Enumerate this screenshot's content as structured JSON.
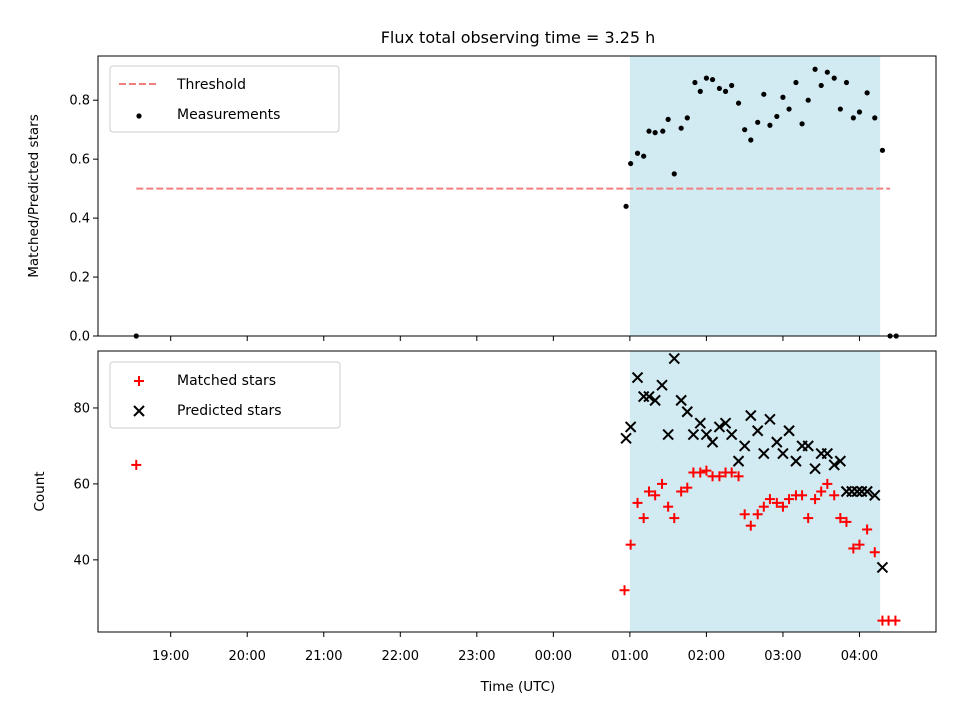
{
  "title": "Flux total observing time = 3.25 h",
  "colors": {
    "threshold": "#f08080",
    "measurement": "#000000",
    "matched": "#ff0000",
    "predicted": "#000000",
    "span": "#add8e6"
  },
  "chart_data": [
    {
      "type": "scatter",
      "ylabel": "Matched/Predicted stars",
      "ylim": [
        0,
        0.95
      ],
      "yticks": [
        "0.0",
        "0.2",
        "0.4",
        "0.6",
        "0.8"
      ],
      "xlim_hours": [
        -5.95,
        5.0
      ],
      "legend_position": "top-left",
      "highlight_span_hours": [
        1.0,
        4.27
      ],
      "threshold": {
        "name": "Threshold",
        "y": 0.5,
        "x_range_hours": [
          -5.45,
          4.4
        ]
      },
      "series": [
        {
          "name": "Measurements",
          "points": [
            [
              -5.45,
              0.0
            ],
            [
              0.95,
              0.44
            ],
            [
              1.01,
              0.585
            ],
            [
              1.1,
              0.62
            ],
            [
              1.18,
              0.61
            ],
            [
              1.25,
              0.695
            ],
            [
              1.33,
              0.69
            ],
            [
              1.43,
              0.695
            ],
            [
              1.5,
              0.735
            ],
            [
              1.58,
              0.55
            ],
            [
              1.67,
              0.705
            ],
            [
              1.75,
              0.74
            ],
            [
              1.85,
              0.86
            ],
            [
              1.92,
              0.83
            ],
            [
              2.0,
              0.875
            ],
            [
              2.08,
              0.87
            ],
            [
              2.17,
              0.84
            ],
            [
              2.25,
              0.83
            ],
            [
              2.33,
              0.85
            ],
            [
              2.42,
              0.79
            ],
            [
              2.5,
              0.7
            ],
            [
              2.58,
              0.665
            ],
            [
              2.67,
              0.725
            ],
            [
              2.75,
              0.82
            ],
            [
              2.83,
              0.715
            ],
            [
              2.92,
              0.745
            ],
            [
              3.0,
              0.81
            ],
            [
              3.08,
              0.77
            ],
            [
              3.17,
              0.86
            ],
            [
              3.25,
              0.72
            ],
            [
              3.33,
              0.8
            ],
            [
              3.42,
              0.905
            ],
            [
              3.5,
              0.85
            ],
            [
              3.58,
              0.895
            ],
            [
              3.67,
              0.875
            ],
            [
              3.75,
              0.77
            ],
            [
              3.83,
              0.86
            ],
            [
              3.92,
              0.74
            ],
            [
              4.0,
              0.76
            ],
            [
              4.1,
              0.825
            ],
            [
              4.2,
              0.74
            ],
            [
              4.3,
              0.63
            ],
            [
              4.4,
              0.0
            ],
            [
              4.48,
              0.0
            ]
          ]
        }
      ]
    },
    {
      "type": "scatter",
      "ylabel": "Count",
      "xlabel": "Time (UTC)",
      "ylim": [
        21,
        95
      ],
      "yticks": [
        "40",
        "60",
        "80"
      ],
      "xlim_hours": [
        -5.95,
        5.0
      ],
      "xticks": [
        "19:00",
        "20:00",
        "21:00",
        "22:00",
        "23:00",
        "00:00",
        "01:00",
        "02:00",
        "03:00",
        "04:00"
      ],
      "legend_position": "top-left",
      "highlight_span_hours": [
        1.0,
        4.27
      ],
      "series": [
        {
          "name": "Matched stars",
          "points": [
            [
              -5.45,
              65
            ],
            [
              0.93,
              32
            ],
            [
              1.01,
              44
            ],
            [
              1.1,
              55
            ],
            [
              1.18,
              51
            ],
            [
              1.25,
              58
            ],
            [
              1.33,
              57
            ],
            [
              1.42,
              60
            ],
            [
              1.5,
              54
            ],
            [
              1.58,
              51
            ],
            [
              1.67,
              58
            ],
            [
              1.75,
              59
            ],
            [
              1.83,
              63
            ],
            [
              1.92,
              63
            ],
            [
              2.0,
              63.5
            ],
            [
              2.08,
              62
            ],
            [
              2.17,
              62
            ],
            [
              2.25,
              63
            ],
            [
              2.33,
              63
            ],
            [
              2.42,
              62
            ],
            [
              2.5,
              52
            ],
            [
              2.58,
              49
            ],
            [
              2.67,
              52
            ],
            [
              2.75,
              54
            ],
            [
              2.83,
              56
            ],
            [
              2.92,
              55
            ],
            [
              3.0,
              54
            ],
            [
              3.08,
              56
            ],
            [
              3.17,
              57
            ],
            [
              3.25,
              57
            ],
            [
              3.33,
              51
            ],
            [
              3.42,
              56
            ],
            [
              3.5,
              58
            ],
            [
              3.58,
              60
            ],
            [
              3.67,
              57
            ],
            [
              3.75,
              51
            ],
            [
              3.83,
              50
            ],
            [
              3.92,
              43
            ],
            [
              4.0,
              44
            ],
            [
              4.1,
              48
            ],
            [
              4.2,
              42
            ],
            [
              4.3,
              24
            ],
            [
              4.38,
              24
            ],
            [
              4.47,
              24
            ]
          ]
        },
        {
          "name": "Predicted stars",
          "points": [
            [
              0.95,
              72
            ],
            [
              1.01,
              75
            ],
            [
              1.1,
              88
            ],
            [
              1.18,
              83
            ],
            [
              1.25,
              83
            ],
            [
              1.33,
              82
            ],
            [
              1.42,
              86
            ],
            [
              1.5,
              73
            ],
            [
              1.58,
              93
            ],
            [
              1.67,
              82
            ],
            [
              1.75,
              79
            ],
            [
              1.83,
              73
            ],
            [
              1.92,
              76
            ],
            [
              2.0,
              73
            ],
            [
              2.08,
              71
            ],
            [
              2.17,
              75
            ],
            [
              2.25,
              76
            ],
            [
              2.33,
              73
            ],
            [
              2.42,
              66
            ],
            [
              2.5,
              70
            ],
            [
              2.58,
              78
            ],
            [
              2.67,
              74
            ],
            [
              2.75,
              68
            ],
            [
              2.83,
              77
            ],
            [
              2.92,
              71
            ],
            [
              3.0,
              68
            ],
            [
              3.08,
              74
            ],
            [
              3.17,
              66
            ],
            [
              3.25,
              70
            ],
            [
              3.33,
              70
            ],
            [
              3.42,
              64
            ],
            [
              3.5,
              68
            ],
            [
              3.58,
              68
            ],
            [
              3.67,
              65
            ],
            [
              3.75,
              66
            ],
            [
              3.83,
              58
            ],
            [
              3.9,
              58
            ],
            [
              3.97,
              58
            ],
            [
              4.03,
              58
            ],
            [
              4.1,
              58
            ],
            [
              4.2,
              57
            ],
            [
              4.3,
              38
            ]
          ]
        }
      ]
    }
  ]
}
